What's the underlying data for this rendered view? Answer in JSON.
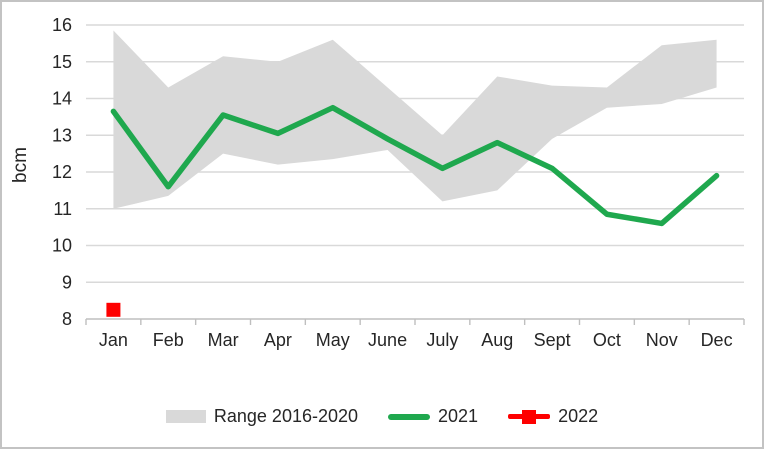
{
  "chart_data": {
    "type": "line",
    "title": "",
    "xlabel": "",
    "ylabel": "bcm",
    "ylim": [
      8,
      16
    ],
    "ytick_step": 1,
    "grid": true,
    "legend_position": "bottom",
    "categories": [
      "Jan",
      "Feb",
      "Mar",
      "Apr",
      "May",
      "June",
      "July",
      "Aug",
      "Sept",
      "Oct",
      "Nov",
      "Dec"
    ],
    "series": [
      {
        "name": "Range 2016-2020",
        "type": "band",
        "color": "#d9d9d9",
        "upper": [
          15.85,
          14.3,
          15.15,
          15.0,
          15.6,
          14.3,
          13.0,
          14.6,
          14.35,
          14.3,
          15.45,
          15.6
        ],
        "lower": [
          11.0,
          11.35,
          12.5,
          12.2,
          12.35,
          12.6,
          11.2,
          11.5,
          12.9,
          13.75,
          13.85,
          14.3
        ]
      },
      {
        "name": "2021",
        "type": "line",
        "color": "#1fa84e",
        "values": [
          13.65,
          11.6,
          13.55,
          13.05,
          13.75,
          12.9,
          12.1,
          12.8,
          12.1,
          10.85,
          10.6,
          11.9
        ]
      },
      {
        "name": "2022",
        "type": "square_marker",
        "color": "#fe0000",
        "values": [
          8.25,
          null,
          null,
          null,
          null,
          null,
          null,
          null,
          null,
          null,
          null,
          null
        ]
      }
    ],
    "axis": {
      "grid_color": "#d9d9d9",
      "axis_line_color": "#bfbfbf",
      "text_color": "#262626"
    }
  }
}
